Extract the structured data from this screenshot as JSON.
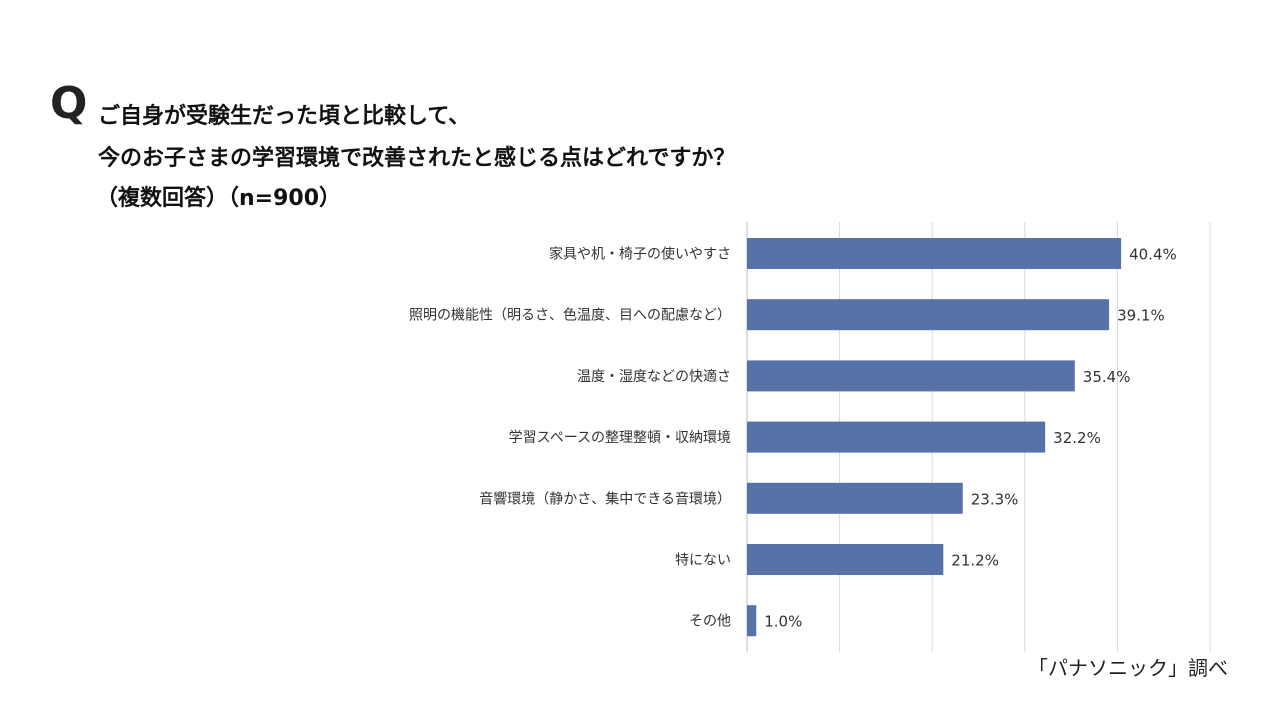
{
  "question": {
    "mark": "Q",
    "line1": "ご自身が受験生だった頃と比較して、",
    "line2": "今のお子さまの学習環境で改善されたと感じる点はどれですか？",
    "line3": "（複数回答）（n=900）"
  },
  "source": "「パナソニック」調べ",
  "colors": {
    "bar": "#5672a8",
    "grid": "#d9d9d9",
    "text": "#333333"
  },
  "chart_data": {
    "type": "bar",
    "orientation": "horizontal",
    "categories": [
      "家具や机・椅子の使いやすさ",
      "照明の機能性（明るさ、色温度、目への配慮など）",
      "温度・湿度などの快適さ",
      "学習スペースの整理整頓・収納環境",
      "音響環境（静かさ、集中できる音環境）",
      "特にない",
      "その他"
    ],
    "values": [
      40.4,
      39.1,
      35.4,
      32.2,
      23.3,
      21.2,
      1.0
    ],
    "data_labels": [
      "40.4%",
      "39.1%",
      "35.4%",
      "32.2%",
      "23.3%",
      "21.2%",
      "1.0%"
    ],
    "xlim": [
      0,
      50
    ],
    "grid": true
  }
}
